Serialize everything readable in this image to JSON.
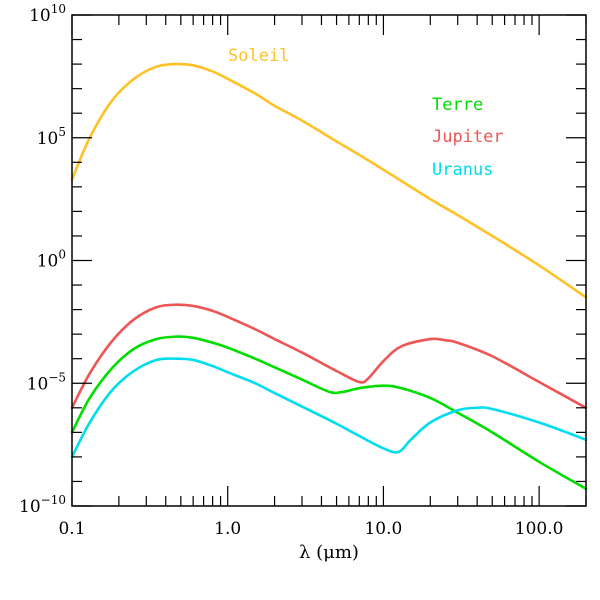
{
  "chart_data": {
    "type": "line",
    "title": "",
    "xlabel": "λ (μm)",
    "ylabel": "",
    "x_scale": "log",
    "y_scale": "log",
    "xlim": [
      0.1,
      200
    ],
    "ylim": [
      1e-10,
      10000000000.0
    ],
    "x_ticks": [
      {
        "value": 0.1,
        "label": "0.1"
      },
      {
        "value": 1,
        "label": "1.0"
      },
      {
        "value": 10,
        "label": "10.0"
      },
      {
        "value": 100,
        "label": "100.0"
      }
    ],
    "y_ticks": [
      {
        "value": 1e-10,
        "base": "10",
        "exp": "−10"
      },
      {
        "value": 1e-05,
        "base": "10",
        "exp": "−5"
      },
      {
        "value": 1,
        "base": "10",
        "exp": "0"
      },
      {
        "value": 100000.0,
        "base": "10",
        "exp": "5"
      },
      {
        "value": 10000000000.0,
        "base": "10",
        "exp": "10"
      }
    ],
    "grid": false,
    "legend_position": "top-right",
    "series": [
      {
        "name": "Soleil",
        "color": "#ffc125",
        "x": [
          0.1,
          0.13,
          0.18,
          0.25,
          0.35,
          0.47,
          0.6,
          0.8,
          1.0,
          1.5,
          2,
          3,
          5,
          7,
          10,
          20,
          30,
          50,
          100,
          200
        ],
        "log10_y": [
          3.3,
          5.0,
          6.5,
          7.4,
          7.9,
          8.0,
          7.95,
          7.7,
          7.4,
          6.8,
          6.3,
          5.7,
          4.85,
          4.3,
          3.7,
          2.5,
          1.85,
          1.0,
          -0.2,
          -1.5
        ]
      },
      {
        "name": "Terre",
        "color": "#00dd00",
        "x": [
          0.1,
          0.13,
          0.18,
          0.25,
          0.35,
          0.47,
          0.6,
          0.8,
          1.0,
          1.5,
          2,
          3,
          4.5,
          5.5,
          7,
          10,
          13,
          20,
          30,
          50,
          100,
          200
        ],
        "log10_y": [
          -7.0,
          -5.6,
          -4.4,
          -3.6,
          -3.2,
          -3.1,
          -3.15,
          -3.35,
          -3.55,
          -4.0,
          -4.35,
          -4.85,
          -5.35,
          -5.35,
          -5.2,
          -5.1,
          -5.2,
          -5.6,
          -6.2,
          -7.0,
          -8.2,
          -9.3
        ]
      },
      {
        "name": "Jupiter",
        "color": "#ee5555",
        "x": [
          0.1,
          0.13,
          0.18,
          0.25,
          0.35,
          0.47,
          0.6,
          0.8,
          1.0,
          1.5,
          2,
          3,
          5,
          7,
          8,
          10,
          13,
          20,
          25,
          30,
          50,
          100,
          200
        ],
        "log10_y": [
          -6.0,
          -4.6,
          -3.3,
          -2.4,
          -1.9,
          -1.8,
          -1.85,
          -2.05,
          -2.3,
          -2.8,
          -3.2,
          -3.75,
          -4.5,
          -4.95,
          -4.8,
          -4.1,
          -3.5,
          -3.2,
          -3.25,
          -3.35,
          -3.9,
          -4.95,
          -6.0
        ]
      },
      {
        "name": "Uranus",
        "color": "#00ddee",
        "x": [
          0.1,
          0.13,
          0.18,
          0.25,
          0.35,
          0.47,
          0.6,
          0.8,
          1.0,
          1.5,
          2,
          3,
          5,
          7,
          10,
          12.5,
          15,
          20,
          30,
          40,
          50,
          100,
          200
        ],
        "log10_y": [
          -8.0,
          -6.6,
          -5.3,
          -4.5,
          -4.05,
          -4.0,
          -4.05,
          -4.3,
          -4.55,
          -5.0,
          -5.4,
          -5.95,
          -6.65,
          -7.15,
          -7.65,
          -7.8,
          -7.3,
          -6.6,
          -6.1,
          -6.0,
          -6.05,
          -6.6,
          -7.3
        ]
      }
    ]
  }
}
